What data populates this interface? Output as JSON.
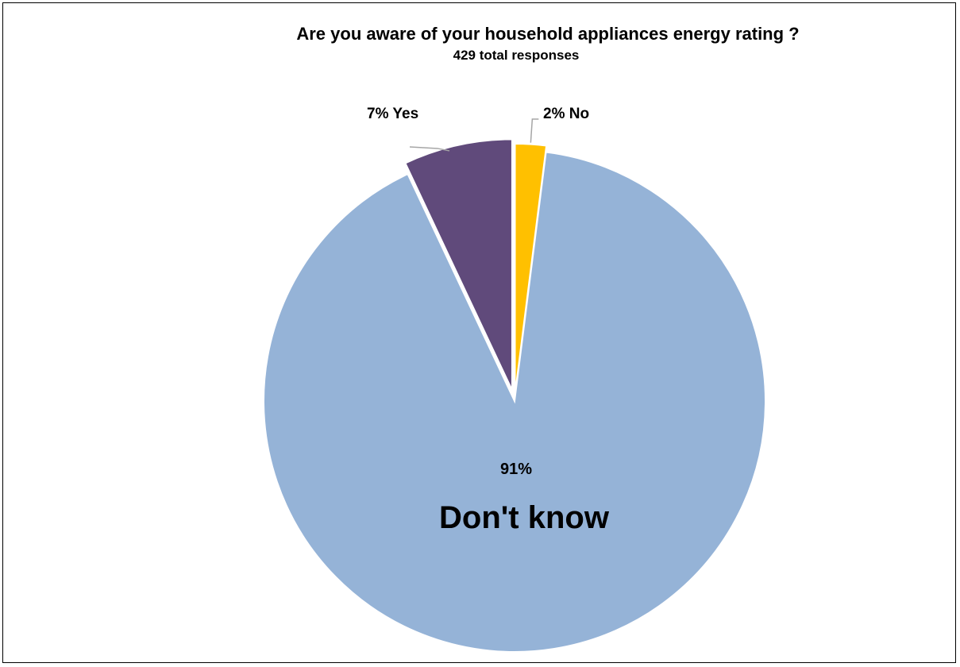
{
  "chart_data": {
    "type": "pie",
    "title": "Are you aware  of  your household appliances energy rating ?",
    "subtitle": "429 total responses",
    "start_angle_deg": 0,
    "direction": "clockwise",
    "exploded": true,
    "slices": [
      {
        "label": "No",
        "value": 2,
        "value_label": "2%",
        "color": "#FFC000"
      },
      {
        "label": "Don't know",
        "value": 91,
        "value_label": "91%",
        "color": "#95B3D7"
      },
      {
        "label": "Yes",
        "value": 7,
        "value_label": "7%",
        "color": "#604A7B"
      }
    ]
  }
}
